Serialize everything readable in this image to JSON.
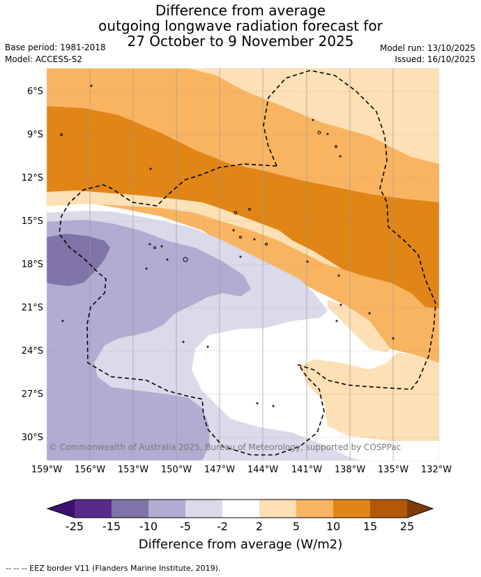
{
  "title": {
    "line1": "Difference from average",
    "line2": "outgoing longwave radiation forecast for",
    "line3": "27 October to 9 November 2025"
  },
  "meta": {
    "base_period": "Base period: 1981-2018",
    "model": "Model: ACCESS-S2",
    "model_run": "Model run: 13/10/2025",
    "issued": "Issued: 16/10/2025"
  },
  "map": {
    "copyright": "© Commonwealth of Australia 2025, Bureau of Meteorology, supported by COSPPac",
    "lat_labels": [
      "6°S",
      "9°S",
      "12°S",
      "15°S",
      "18°S",
      "21°S",
      "24°S",
      "27°S",
      "30°S"
    ],
    "lon_labels": [
      "159°W",
      "156°W",
      "153°W",
      "150°W",
      "147°W",
      "144°W",
      "141°W",
      "138°W",
      "135°W",
      "132°W"
    ]
  },
  "colorbar": {
    "title": "Difference from average (W/m2)",
    "labels": [
      "-25",
      "-15",
      "-10",
      "-5",
      "-2",
      "2",
      "5",
      "10",
      "15",
      "25"
    ],
    "colors": [
      "#3d1170",
      "#5a2a8a",
      "#7f73a8",
      "#b1acd2",
      "#dadaea",
      "#ffffff",
      "#fde0b5",
      "#f9b461",
      "#e08516",
      "#b35806",
      "#7f3b08"
    ]
  },
  "footer": "--  --  -- EEZ border V11 (Flanders Marine Institute, 2019)."
}
